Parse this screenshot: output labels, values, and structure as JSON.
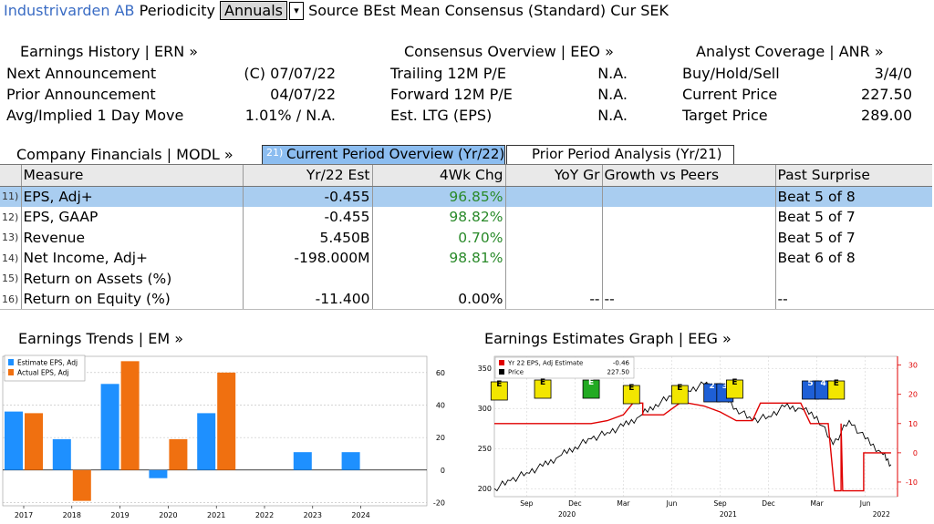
{
  "header": {
    "security": "Industrivarden AB",
    "periodicity_label": "Periodicity",
    "periodicity_value": "Annuals",
    "source": "Source BEst Mean Consensus (Standard) Cur SEK"
  },
  "earnings_history": {
    "title": "Earnings History | ERN »",
    "rows": [
      {
        "label": "Next Announcement",
        "value": "(C)  07/07/22"
      },
      {
        "label": "Prior Announcement",
        "value": "04/07/22"
      },
      {
        "label": "Avg/Implied 1 Day Move",
        "value": "1.01% / N.A."
      }
    ]
  },
  "consensus": {
    "title": "Consensus Overview | EEO »",
    "rows": [
      {
        "label": "Trailing 12M P/E",
        "value": "N.A."
      },
      {
        "label": "Forward 12M P/E",
        "value": "N.A."
      },
      {
        "label": "Est. LTG (EPS)",
        "value": "N.A."
      }
    ]
  },
  "analyst": {
    "title": "Analyst Coverage | ANR »",
    "rows": [
      {
        "label": "Buy/Hold/Sell",
        "value": "3/4/0"
      },
      {
        "label": "Current Price",
        "value": "227.50"
      },
      {
        "label": "Target Price",
        "value": "289.00"
      }
    ]
  },
  "financials": {
    "title": "Company Financials | MODL »",
    "tab_active_num": "21)",
    "tab_active": "Current Period Overview (Yr/22)",
    "tab_other": "Prior Period Analysis (Yr/21)",
    "columns": [
      "Measure",
      "Yr/22 Est",
      "4Wk Chg",
      "YoY Gr",
      "Growth vs Peers",
      "Past Surprise"
    ],
    "rows": [
      {
        "n": "11)",
        "measure": "EPS, Adj+",
        "est": "-0.455",
        "chg": "96.85%",
        "yoy": "",
        "peers": "",
        "surprise": "Beat 5 of 8"
      },
      {
        "n": "12)",
        "measure": "EPS, GAAP",
        "est": "-0.455",
        "chg": "98.82%",
        "yoy": "",
        "peers": "",
        "surprise": "Beat 5 of 7"
      },
      {
        "n": "13)",
        "measure": "Revenue",
        "est": "5.450B",
        "chg": "0.70%",
        "yoy": "",
        "peers": "",
        "surprise": "Beat 5 of 7"
      },
      {
        "n": "14)",
        "measure": "Net Income, Adj+",
        "est": "-198.000M",
        "chg": "98.81%",
        "yoy": "",
        "peers": "",
        "surprise": "Beat 6 of 8"
      },
      {
        "n": "15)",
        "measure": "Return on Assets (%)",
        "est": "",
        "chg": "",
        "yoy": "",
        "peers": "",
        "surprise": ""
      },
      {
        "n": "16)",
        "measure": "Return on Equity (%)",
        "est": "-11.400",
        "chg": "0.00%",
        "yoy": "--",
        "peers": "--",
        "surprise": "--"
      }
    ]
  },
  "earnings_trends": {
    "title": "Earnings Trends | EM »"
  },
  "estimates_graph": {
    "title": "Earnings Estimates Graph | EEG »"
  },
  "chart_data": [
    {
      "type": "bar",
      "categories": [
        "2017",
        "2018",
        "2019",
        "2020",
        "2021",
        "2022",
        "2023",
        "2024"
      ],
      "series": [
        {
          "name": "Estimate EPS, Adj",
          "color": "#1e90ff",
          "values": [
            36,
            19,
            53,
            -5,
            35,
            null,
            11,
            11
          ]
        },
        {
          "name": "Actual EPS, Adj",
          "color": "#f07010",
          "values": [
            35,
            -19,
            67,
            19,
            60,
            null,
            null,
            null
          ]
        }
      ],
      "yticks": [
        -20,
        0,
        20,
        40,
        60
      ],
      "ylim": [
        -22,
        70
      ],
      "legend": "top-left"
    },
    {
      "type": "line",
      "x_ticks_top": [
        "Sep",
        "Dec",
        "Mar",
        "Jun",
        "Sep",
        "Dec",
        "Mar",
        "Jun"
      ],
      "x_ticks_bottom": [
        "2020",
        "2021",
        "2022"
      ],
      "left_axis": {
        "ticks": [
          200,
          250,
          300,
          350
        ],
        "lim": [
          190,
          365
        ]
      },
      "right_axis": {
        "ticks": [
          -10,
          0,
          10,
          20,
          30
        ],
        "lim": [
          -15,
          33
        ]
      },
      "series": [
        {
          "name": "Yr 22 EPS, Adj Estimate",
          "last": "-0.46",
          "color": "#e00000"
        },
        {
          "name": "Price",
          "last": "227.50",
          "color": "#000000"
        }
      ],
      "legend": "top-left",
      "event_markers": [
        "E",
        "E",
        "E",
        "E",
        "E",
        "2",
        "3",
        "E",
        "5",
        "4",
        "E"
      ]
    }
  ]
}
